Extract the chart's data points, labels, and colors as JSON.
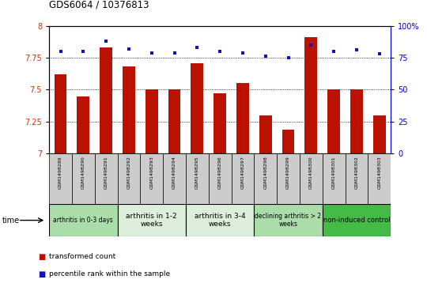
{
  "title": "GDS6064 / 10376813",
  "samples": [
    "GSM1498289",
    "GSM1498290",
    "GSM1498291",
    "GSM1498292",
    "GSM1498293",
    "GSM1498294",
    "GSM1498295",
    "GSM1498296",
    "GSM1498297",
    "GSM1498298",
    "GSM1498299",
    "GSM1498300",
    "GSM1498301",
    "GSM1498302",
    "GSM1498303"
  ],
  "bar_values": [
    7.62,
    7.45,
    7.83,
    7.68,
    7.5,
    7.5,
    7.71,
    7.47,
    7.55,
    7.3,
    7.19,
    7.91,
    7.5,
    7.5,
    7.3
  ],
  "dot_values": [
    80,
    80,
    88,
    82,
    79,
    79,
    83,
    80,
    79,
    76,
    75,
    85,
    80,
    81,
    78
  ],
  "ylim_left": [
    7.0,
    8.0
  ],
  "ylim_right": [
    0,
    100
  ],
  "yticks_left": [
    7.0,
    7.25,
    7.5,
    7.75,
    8.0
  ],
  "yticks_right": [
    0,
    25,
    50,
    75,
    100
  ],
  "bar_color": "#bb1100",
  "dot_color": "#1111bb",
  "groups": [
    {
      "label": "arthritis in 0-3 days",
      "start": 0,
      "end": 3,
      "color": "#aaddaa",
      "fontsize": 5.5
    },
    {
      "label": "arthritis in 1-2\nweeks",
      "start": 3,
      "end": 6,
      "color": "#ddeedd",
      "fontsize": 6.5
    },
    {
      "label": "arthritis in 3-4\nweeks",
      "start": 6,
      "end": 9,
      "color": "#ddeedd",
      "fontsize": 6.5
    },
    {
      "label": "declining arthritis > 2\nweeks",
      "start": 9,
      "end": 12,
      "color": "#aaddaa",
      "fontsize": 5.5
    },
    {
      "label": "non-induced control",
      "start": 12,
      "end": 15,
      "color": "#44bb44",
      "fontsize": 6.0
    }
  ],
  "legend_bar_label": "transformed count",
  "legend_dot_label": "percentile rank within the sample",
  "tick_label_color_left": "#cc3300",
  "tick_label_color_right": "#0000cc",
  "yticklabels_left": [
    "7",
    "7.25",
    "7.5",
    "7.75",
    "8"
  ],
  "yticklabels_right": [
    "0",
    "25",
    "50",
    "75",
    "100%"
  ]
}
